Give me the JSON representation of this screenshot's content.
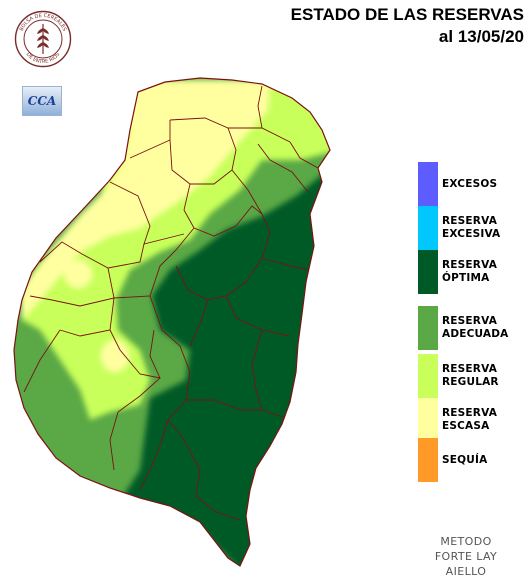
{
  "title": {
    "line1": "ESTADO DE LAS RESERVAS",
    "line2": "al 13/05/20"
  },
  "logo": {
    "text_top": "BOLSA DE CEREALES",
    "text_bottom": "DE ENTRE RIOS",
    "badge": "CCA"
  },
  "legend": [
    {
      "label": "EXCESOS",
      "color": "#5c5cff"
    },
    {
      "label": "RESERVA EXCESIVA",
      "color": "#00c8ff"
    },
    {
      "label": "RESERVA ÓPTIMA",
      "color": "#005a28"
    },
    {
      "label": "RESERVA ADECUADA",
      "color": "#5aa846"
    },
    {
      "label": "RESERVA REGULAR",
      "color": "#c8ff5a"
    },
    {
      "label": "RESERVA ESCASA",
      "color": "#ffff9f"
    },
    {
      "label": "SEQUÍA",
      "color": "#ff9a28"
    }
  ],
  "method": {
    "line1": "METODO",
    "line2": "FORTE LAY",
    "line3": "AIELLO"
  }
}
